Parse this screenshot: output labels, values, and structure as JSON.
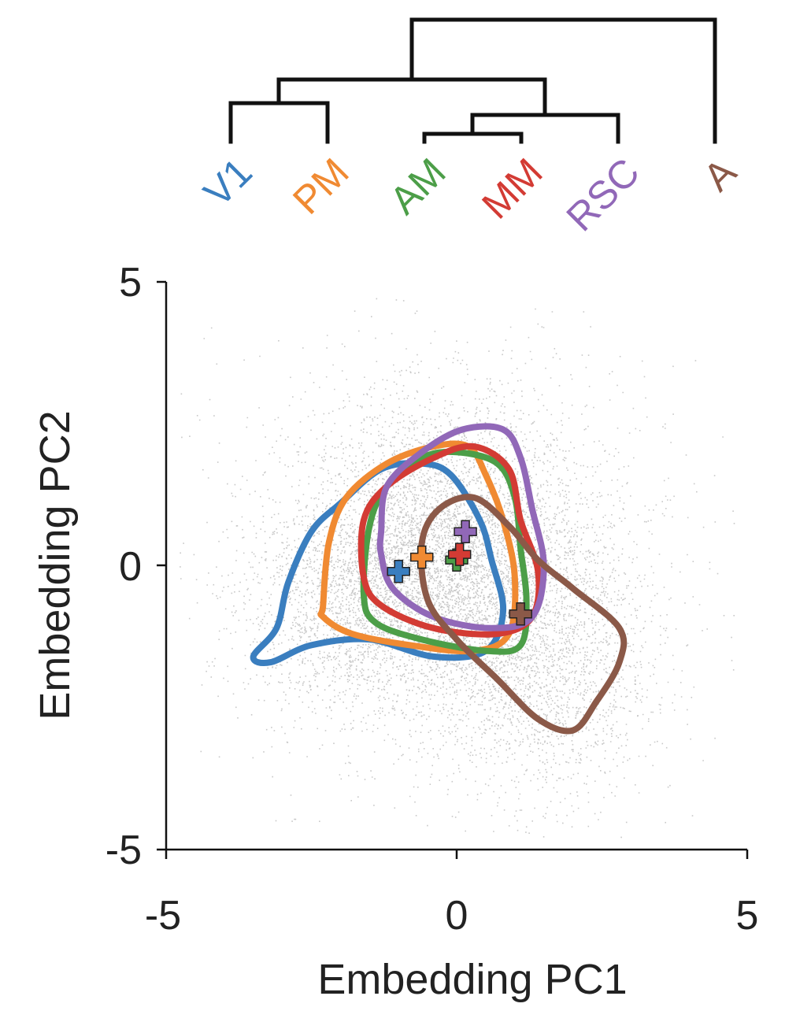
{
  "chart_data": {
    "type": "scatter",
    "title": "",
    "xlabel": "Embedding PC1",
    "ylabel": "Embedding PC2",
    "xlim": [
      -5,
      5
    ],
    "ylim": [
      -5,
      5
    ],
    "xticks": [
      -5,
      0,
      5
    ],
    "yticks": [
      -5,
      0,
      5
    ],
    "xtick_labels": [
      "-5",
      "0",
      "5"
    ],
    "ytick_labels": [
      "-5",
      "0",
      "5"
    ],
    "grid": false,
    "background_points": {
      "description": "dense grey point cloud of all neurons",
      "color": "#9a9a9a"
    },
    "series": [
      {
        "name": "V1",
        "color": "#3a7ebf",
        "centroid": [
          -1.0,
          -0.1
        ],
        "contour": [
          [
            -3.5,
            -1.6
          ],
          [
            -3.1,
            -1.1
          ],
          [
            -2.9,
            -0.3
          ],
          [
            -2.5,
            0.6
          ],
          [
            -2.0,
            1.1
          ],
          [
            -1.3,
            1.7
          ],
          [
            -0.6,
            1.8
          ],
          [
            -0.1,
            1.6
          ],
          [
            0.4,
            0.8
          ],
          [
            0.6,
            0.1
          ],
          [
            0.8,
            -0.8
          ],
          [
            0.5,
            -1.5
          ],
          [
            -0.4,
            -1.6
          ],
          [
            -1.5,
            -1.3
          ],
          [
            -2.5,
            -1.4
          ],
          [
            -3.2,
            -1.7
          ]
        ]
      },
      {
        "name": "PM",
        "color": "#f08a32",
        "centroid": [
          -0.6,
          0.15
        ],
        "contour": [
          [
            -2.3,
            -0.7
          ],
          [
            -2.2,
            0.4
          ],
          [
            -1.9,
            1.2
          ],
          [
            -1.2,
            1.8
          ],
          [
            -0.4,
            2.1
          ],
          [
            0.2,
            2.1
          ],
          [
            0.5,
            1.6
          ],
          [
            0.8,
            0.8
          ],
          [
            1.0,
            -0.2
          ],
          [
            0.9,
            -1.2
          ],
          [
            0.3,
            -1.5
          ],
          [
            -0.8,
            -1.4
          ],
          [
            -1.8,
            -1.2
          ],
          [
            -2.3,
            -0.9
          ]
        ]
      },
      {
        "name": "AM",
        "color": "#4c9e48",
        "centroid": [
          0.0,
          0.1
        ],
        "contour": [
          [
            -1.6,
            -0.5
          ],
          [
            -1.5,
            0.7
          ],
          [
            -1.2,
            1.4
          ],
          [
            -0.6,
            1.9
          ],
          [
            0.0,
            2.0
          ],
          [
            0.7,
            1.8
          ],
          [
            1.0,
            1.2
          ],
          [
            1.1,
            0.3
          ],
          [
            1.2,
            -0.6
          ],
          [
            1.1,
            -1.4
          ],
          [
            0.5,
            -1.5
          ],
          [
            -0.6,
            -1.3
          ],
          [
            -1.4,
            -1.0
          ]
        ]
      },
      {
        "name": "MM",
        "color": "#d33b34",
        "centroid": [
          0.05,
          0.2
        ],
        "contour": [
          [
            -1.6,
            -0.2
          ],
          [
            -1.6,
            0.8
          ],
          [
            -1.2,
            1.4
          ],
          [
            -0.4,
            1.9
          ],
          [
            0.3,
            2.1
          ],
          [
            0.9,
            1.7
          ],
          [
            1.1,
            0.8
          ],
          [
            1.4,
            -0.1
          ],
          [
            1.3,
            -0.9
          ],
          [
            0.7,
            -1.2
          ],
          [
            -0.4,
            -1.1
          ],
          [
            -1.3,
            -0.7
          ]
        ]
      },
      {
        "name": "RSC",
        "color": "#9168b8",
        "centroid": [
          0.15,
          0.6
        ],
        "contour": [
          [
            -1.3,
            0.6
          ],
          [
            -1.2,
            1.4
          ],
          [
            -0.6,
            2.0
          ],
          [
            0.1,
            2.4
          ],
          [
            0.8,
            2.4
          ],
          [
            1.1,
            1.9
          ],
          [
            1.3,
            1.0
          ],
          [
            1.5,
            0.0
          ],
          [
            1.3,
            -0.9
          ],
          [
            0.6,
            -1.1
          ],
          [
            -0.4,
            -0.9
          ],
          [
            -1.1,
            -0.4
          ],
          [
            -1.3,
            0.2
          ]
        ]
      },
      {
        "name": "A",
        "color": "#8b5948",
        "centroid": [
          1.1,
          -0.85
        ],
        "contour": [
          [
            -0.6,
            0.4
          ],
          [
            -0.5,
            -0.6
          ],
          [
            0.0,
            -1.3
          ],
          [
            0.7,
            -2.0
          ],
          [
            1.4,
            -2.7
          ],
          [
            2.0,
            -2.9
          ],
          [
            2.4,
            -2.4
          ],
          [
            2.8,
            -1.7
          ],
          [
            2.8,
            -1.1
          ],
          [
            2.0,
            -0.4
          ],
          [
            1.4,
            0.1
          ],
          [
            0.9,
            0.7
          ],
          [
            0.3,
            1.2
          ],
          [
            -0.3,
            1.0
          ]
        ]
      }
    ],
    "dendrogram": {
      "leaves": [
        "V1",
        "PM",
        "AM",
        "MM",
        "RSC",
        "A"
      ],
      "merges": [
        {
          "children": [
            "V1",
            "PM"
          ]
        },
        {
          "children": [
            "AM",
            "MM"
          ]
        },
        {
          "children": [
            "AM-MM",
            "RSC"
          ]
        },
        {
          "children": [
            "V1-PM",
            "AM-MM-RSC"
          ]
        },
        {
          "children": [
            "V1-PM-AM-MM-RSC",
            "A"
          ]
        }
      ]
    }
  }
}
